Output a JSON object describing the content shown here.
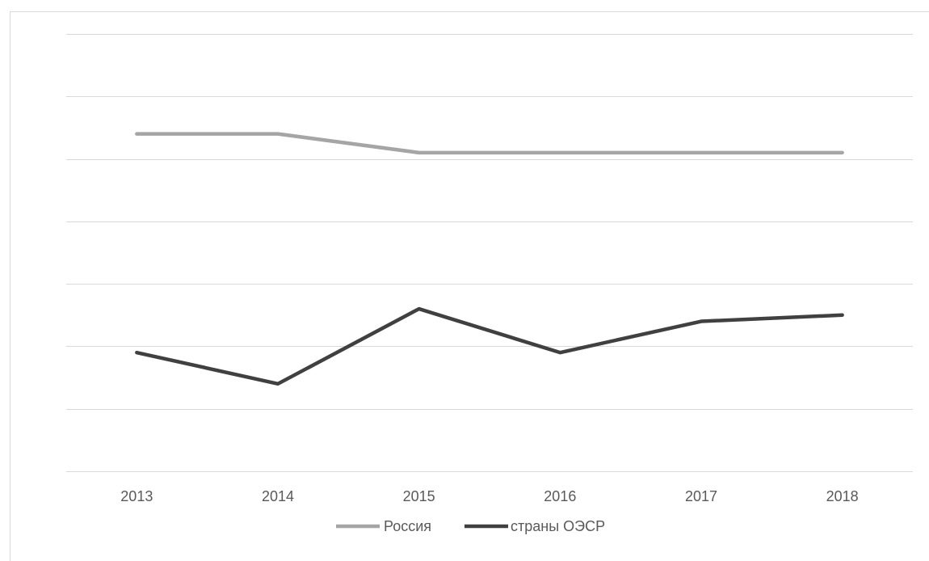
{
  "chart_data": {
    "type": "line",
    "categories": [
      "2013",
      "2014",
      "2015",
      "2016",
      "2017",
      "2018"
    ],
    "series": [
      {
        "name": "Россия",
        "values": [
          5.4,
          5.4,
          5.1,
          5.1,
          5.1,
          5.1
        ],
        "color": "#a5a5a5"
      },
      {
        "name": "страны ОЭСР",
        "values": [
          1.9,
          1.4,
          2.6,
          1.9,
          2.4,
          2.5
        ],
        "color": "#404040"
      }
    ],
    "title": "",
    "xlabel": "",
    "ylabel": "",
    "ylim": [
      0,
      7
    ],
    "y_gridlines": 7,
    "y_tick_labels_shown": false,
    "grid": true,
    "legend_position": "bottom"
  }
}
